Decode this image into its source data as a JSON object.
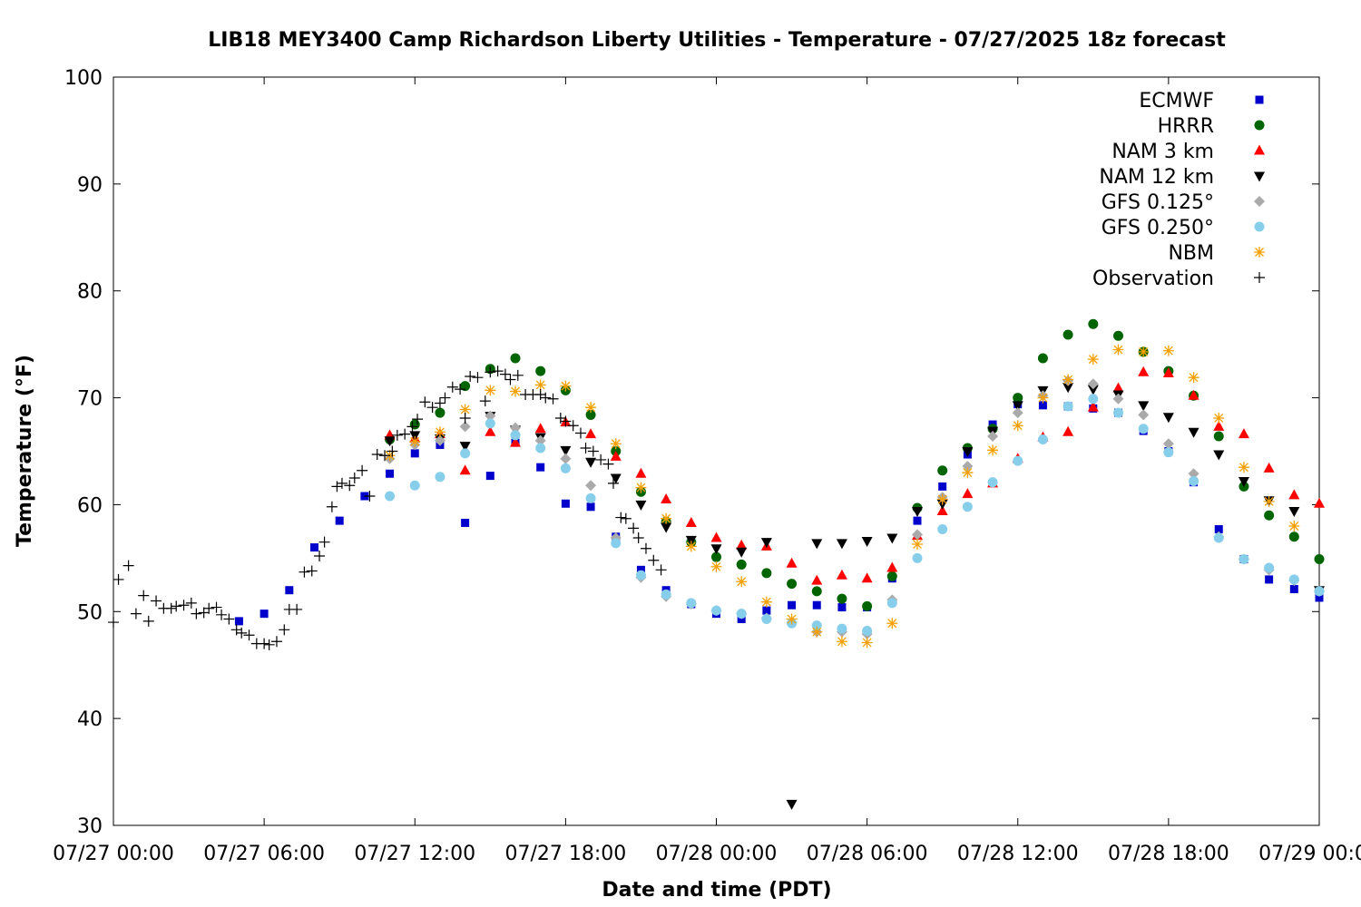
{
  "chart_data": {
    "type": "scatter",
    "title": "LIB18 MEY3400 Camp Richardson Liberty Utilities - Temperature - 07/27/2025 18z forecast",
    "xlabel": "Date and time (PDT)",
    "ylabel": "Temperature (°F)",
    "xlim": [
      0,
      48
    ],
    "ylim": [
      30,
      100
    ],
    "x_unit": "hours since 07/27 00:00 PDT",
    "x_ticks": [
      {
        "value": 0,
        "label": "07/27 00:00"
      },
      {
        "value": 6,
        "label": "07/27 06:00"
      },
      {
        "value": 12,
        "label": "07/27 12:00"
      },
      {
        "value": 18,
        "label": "07/27 18:00"
      },
      {
        "value": 24,
        "label": "07/28 00:00"
      },
      {
        "value": 30,
        "label": "07/28 06:00"
      },
      {
        "value": 36,
        "label": "07/28 12:00"
      },
      {
        "value": 42,
        "label": "07/28 18:00"
      },
      {
        "value": 48,
        "label": "07/29 00:00"
      }
    ],
    "y_ticks": [
      30,
      40,
      50,
      60,
      70,
      80,
      90,
      100
    ],
    "grid": false,
    "legend_position": "top-right",
    "series": [
      {
        "name": "ECMWF",
        "color": "#0000cc",
        "marker": "square",
        "x": [
          5,
          6,
          7,
          8,
          9,
          10,
          11,
          12,
          13,
          14,
          15,
          16,
          17,
          18,
          19,
          20,
          21,
          22,
          23,
          24,
          25,
          26,
          27,
          28,
          29,
          30,
          31,
          32,
          33,
          34,
          35,
          36,
          37,
          38,
          39,
          40,
          41,
          42,
          43,
          44,
          45,
          46,
          47,
          48
        ],
        "y": [
          49.1,
          49.8,
          52.0,
          56.0,
          58.5,
          60.8,
          62.9,
          64.8,
          65.6,
          58.3,
          62.7,
          65.8,
          63.5,
          60.1,
          59.8,
          57.0,
          53.9,
          52.0,
          50.7,
          49.8,
          49.3,
          50.1,
          50.6,
          50.6,
          50.4,
          50.4,
          53.1,
          58.5,
          61.7,
          64.7,
          67.5,
          69.4,
          69.3,
          69.2,
          69.0,
          68.6,
          66.9,
          65.0,
          62.1,
          57.7,
          54.9,
          53.0,
          52.1,
          51.3
        ]
      },
      {
        "name": "HRRR",
        "color": "#006400",
        "marker": "circle",
        "x": [
          11,
          12,
          13,
          14,
          15,
          16,
          17,
          18,
          19,
          20,
          21,
          22,
          23,
          24,
          25,
          26,
          27,
          28,
          29,
          30,
          31,
          32,
          33,
          34,
          35,
          36,
          37,
          38,
          39,
          40,
          41,
          42,
          43,
          44,
          45,
          46,
          47,
          48
        ],
        "y": [
          66.1,
          67.5,
          68.6,
          71.1,
          72.7,
          73.7,
          72.5,
          70.7,
          68.4,
          65.0,
          61.2,
          58.4,
          56.5,
          55.1,
          54.4,
          53.6,
          52.6,
          51.9,
          51.2,
          50.5,
          53.3,
          59.7,
          63.2,
          65.3,
          67.1,
          70.0,
          73.7,
          75.9,
          76.9,
          75.8,
          74.3,
          72.5,
          70.2,
          66.4,
          61.7,
          59.0,
          57.0,
          54.9
        ]
      },
      {
        "name": "NAM 3 km",
        "color": "#ff0000",
        "marker": "triangle-up",
        "x": [
          11,
          12,
          13,
          14,
          15,
          16,
          17,
          18,
          19,
          20,
          21,
          22,
          23,
          24,
          25,
          26,
          27,
          28,
          29,
          30,
          31,
          32,
          33,
          34,
          35,
          36,
          37,
          38,
          39,
          40,
          41,
          42,
          43,
          44,
          45,
          46,
          47,
          48
        ],
        "y": [
          66.5,
          66.2,
          66.6,
          63.2,
          66.8,
          65.8,
          67.1,
          67.7,
          66.6,
          64.5,
          62.9,
          60.5,
          58.3,
          56.9,
          56.2,
          56.1,
          54.5,
          52.9,
          53.4,
          53.1,
          54.1,
          57.1,
          59.4,
          61.0,
          62.0,
          64.3,
          66.3,
          66.8,
          69.1,
          70.9,
          72.4,
          72.3,
          70.2,
          67.3,
          66.6,
          63.4,
          60.9,
          60.1
        ]
      },
      {
        "name": "NAM 12 km",
        "color": "#000000",
        "marker": "triangle-down",
        "x": [
          11,
          12,
          13,
          14,
          15,
          16,
          17,
          18,
          19,
          20,
          21,
          22,
          23,
          24,
          25,
          26,
          27,
          28,
          29,
          30,
          31,
          32,
          33,
          34,
          35,
          36,
          37,
          38,
          39,
          40,
          41,
          42,
          43,
          44,
          45,
          46,
          47,
          48
        ],
        "y": [
          66.0,
          66.5,
          66.2,
          65.5,
          68.3,
          67.0,
          66.3,
          65.1,
          64.0,
          62.5,
          60.0,
          57.9,
          56.7,
          55.9,
          55.6,
          56.5,
          32.0,
          56.4,
          56.4,
          56.6,
          56.9,
          59.4,
          60.1,
          65.0,
          66.9,
          69.3,
          70.7,
          71.0,
          70.8,
          70.3,
          69.3,
          68.2,
          66.8,
          64.7,
          62.2,
          60.4,
          59.4,
          52.0
        ]
      },
      {
        "name": "GFS 0.125°",
        "color": "#aaaaaa",
        "marker": "diamond",
        "x": [
          11,
          12,
          13,
          14,
          15,
          16,
          17,
          18,
          19,
          20,
          21,
          22,
          23,
          24,
          25,
          26,
          27,
          28,
          29,
          30,
          31,
          32,
          33,
          34,
          35,
          36,
          37,
          38,
          39,
          40,
          41,
          42,
          43,
          44,
          45,
          46,
          47,
          48
        ],
        "y": [
          64.3,
          65.6,
          66.0,
          67.3,
          68.3,
          67.2,
          66.0,
          64.3,
          61.8,
          56.9,
          53.2,
          51.4,
          50.7,
          50.1,
          49.8,
          49.4,
          49.0,
          48.1,
          48.1,
          47.9,
          51.1,
          57.2,
          60.7,
          63.6,
          66.4,
          68.6,
          70.2,
          71.6,
          71.3,
          69.9,
          68.4,
          65.7,
          62.9,
          57.0,
          54.9,
          53.9,
          52.9,
          51.9
        ]
      },
      {
        "name": "GFS 0.250°",
        "color": "#87ceeb",
        "marker": "circle",
        "x": [
          11,
          12,
          13,
          14,
          15,
          16,
          17,
          18,
          19,
          20,
          21,
          22,
          23,
          24,
          25,
          26,
          27,
          28,
          29,
          30,
          31,
          32,
          33,
          34,
          35,
          36,
          37,
          38,
          39,
          40,
          41,
          42,
          43,
          44,
          45,
          46,
          47,
          48
        ],
        "y": [
          60.8,
          61.8,
          62.6,
          64.8,
          67.6,
          66.5,
          65.3,
          63.4,
          60.6,
          56.4,
          53.4,
          51.6,
          50.8,
          50.1,
          49.8,
          49.3,
          48.9,
          48.7,
          48.4,
          48.2,
          50.8,
          55.0,
          57.7,
          59.8,
          62.1,
          64.1,
          66.1,
          69.2,
          69.9,
          68.6,
          67.1,
          64.9,
          62.2,
          56.9,
          54.9,
          54.1,
          53.0,
          51.9
        ]
      },
      {
        "name": "NBM",
        "color": "#f5a000",
        "marker": "asterisk",
        "x": [
          11,
          12,
          13,
          14,
          15,
          16,
          17,
          18,
          19,
          20,
          21,
          22,
          23,
          24,
          25,
          26,
          27,
          28,
          29,
          30,
          31,
          32,
          33,
          34,
          35,
          36,
          37,
          38,
          39,
          40,
          41,
          42,
          43,
          44,
          45,
          46,
          47,
          48
        ],
        "y": [
          64.6,
          65.9,
          66.8,
          68.9,
          70.7,
          70.6,
          71.2,
          71.1,
          69.1,
          65.7,
          61.6,
          58.7,
          56.1,
          54.2,
          52.8,
          50.9,
          49.3,
          48.1,
          47.2,
          47.1,
          48.9,
          56.3,
          60.5,
          63.0,
          65.1,
          67.4,
          70.0,
          71.7,
          73.6,
          74.5,
          74.3,
          74.4,
          71.9,
          68.1,
          63.5,
          60.3,
          58.0,
          null
        ]
      },
      {
        "name": "Observation",
        "color": "#000000",
        "marker": "plus",
        "x": [
          0.0,
          0.2,
          0.6,
          0.9,
          1.2,
          1.4,
          1.7,
          2.0,
          2.3,
          2.5,
          2.8,
          3.1,
          3.3,
          3.6,
          3.8,
          4.1,
          4.3,
          4.6,
          4.9,
          5.1,
          5.4,
          5.7,
          6.0,
          6.2,
          6.5,
          6.8,
          7.0,
          7.3,
          7.6,
          7.9,
          8.2,
          8.4,
          8.7,
          8.9,
          9.1,
          9.4,
          9.6,
          9.9,
          10.2,
          10.5,
          10.8,
          11.1,
          11.3,
          11.6,
          11.9,
          12.1,
          12.4,
          12.7,
          13.0,
          13.2,
          13.5,
          13.8,
          14.0,
          14.2,
          14.5,
          14.8,
          15.0,
          15.3,
          15.6,
          15.8,
          16.1,
          16.4,
          16.7,
          17.0,
          17.2,
          17.5,
          17.8,
          18.0,
          18.3,
          18.6,
          18.8,
          19.1,
          19.4,
          19.7,
          19.9,
          20.2,
          20.4,
          20.7,
          20.9,
          21.2,
          21.5,
          21.8
        ],
        "y": [
          49.0,
          53.0,
          54.3,
          49.8,
          51.5,
          49.1,
          51.0,
          50.3,
          50.3,
          50.5,
          50.6,
          50.8,
          49.8,
          49.9,
          50.3,
          50.4,
          49.7,
          49.3,
          48.3,
          48.0,
          47.8,
          47.0,
          47.0,
          46.9,
          47.2,
          48.3,
          50.2,
          50.2,
          53.7,
          53.8,
          55.2,
          56.5,
          59.8,
          61.7,
          62.0,
          61.8,
          62.5,
          63.2,
          60.8,
          64.7,
          64.6,
          65.0,
          66.5,
          66.6,
          67.3,
          68.0,
          69.6,
          69.1,
          69.5,
          70.0,
          71.0,
          70.8,
          68.1,
          72.0,
          71.9,
          69.7,
          72.4,
          72.5,
          72.2,
          71.7,
          72.1,
          70.3,
          70.3,
          70.3,
          70.0,
          69.9,
          68.1,
          67.8,
          67.4,
          66.7,
          65.3,
          65.0,
          64.2,
          63.8,
          62.0,
          58.8,
          58.7,
          57.8,
          56.9,
          55.9,
          54.8,
          53.9
        ]
      }
    ]
  }
}
